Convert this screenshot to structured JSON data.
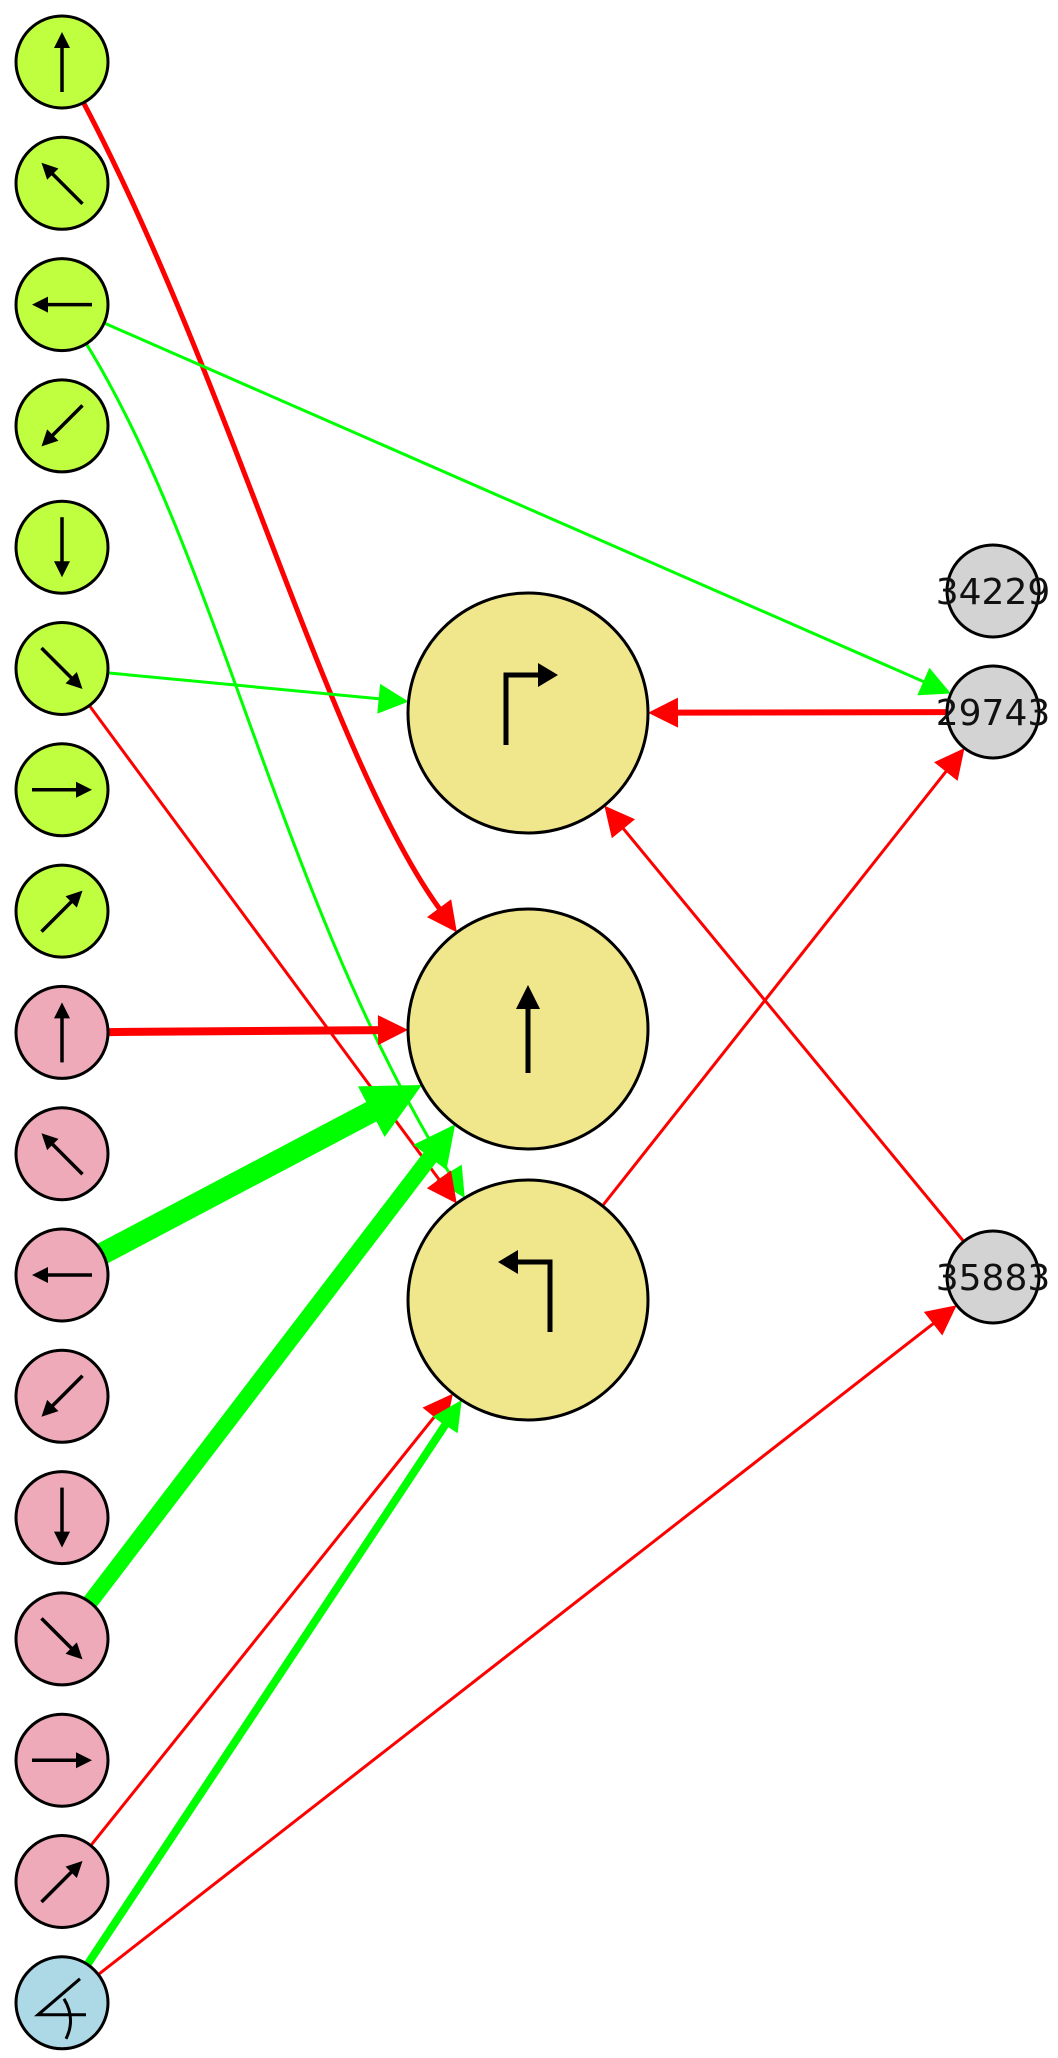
{
  "colors": {
    "input_green": "#bfff40",
    "input_pink": "#eeaab9",
    "input_blue": "#add8e6",
    "output_yellow": "#f0e68c",
    "hidden_gray": "#d3d3d3",
    "edge_positive": "#00ff00",
    "edge_negative": "#ff0000",
    "outline": "#000000"
  },
  "inputs": [
    {
      "id": "g-up",
      "group": "green",
      "icon": "arrow-up-icon"
    },
    {
      "id": "g-upleft",
      "group": "green",
      "icon": "arrow-up-left-icon"
    },
    {
      "id": "g-left",
      "group": "green",
      "icon": "arrow-left-icon"
    },
    {
      "id": "g-downleft",
      "group": "green",
      "icon": "arrow-down-left-icon"
    },
    {
      "id": "g-down",
      "group": "green",
      "icon": "arrow-down-icon"
    },
    {
      "id": "g-downright",
      "group": "green",
      "icon": "arrow-down-right-icon"
    },
    {
      "id": "g-right",
      "group": "green",
      "icon": "arrow-right-icon"
    },
    {
      "id": "g-upright",
      "group": "green",
      "icon": "arrow-up-right-icon"
    },
    {
      "id": "p-up",
      "group": "pink",
      "icon": "arrow-up-icon"
    },
    {
      "id": "p-upleft",
      "group": "pink",
      "icon": "arrow-up-left-icon"
    },
    {
      "id": "p-left",
      "group": "pink",
      "icon": "arrow-left-icon"
    },
    {
      "id": "p-downleft",
      "group": "pink",
      "icon": "arrow-down-left-icon"
    },
    {
      "id": "p-down",
      "group": "pink",
      "icon": "arrow-down-icon"
    },
    {
      "id": "p-downright",
      "group": "pink",
      "icon": "arrow-down-right-icon"
    },
    {
      "id": "p-right",
      "group": "pink",
      "icon": "arrow-right-icon"
    },
    {
      "id": "p-upright",
      "group": "pink",
      "icon": "arrow-up-right-icon"
    },
    {
      "id": "b-angle",
      "group": "blue",
      "icon": "angle-icon"
    }
  ],
  "outputs": [
    {
      "id": "o-turn-right",
      "icon": "turn-right-icon"
    },
    {
      "id": "o-forward",
      "icon": "forward-arrow-icon"
    },
    {
      "id": "o-turn-left",
      "icon": "turn-left-icon"
    }
  ],
  "hidden": [
    {
      "id": "h-34229",
      "label": "34229"
    },
    {
      "id": "h-29743",
      "label": "29743"
    },
    {
      "id": "h-35883",
      "label": "35883"
    }
  ],
  "edges": [
    {
      "from": "g-up",
      "to": "o-forward",
      "sign": "negative",
      "weight": 5
    },
    {
      "from": "g-left",
      "to": "h-29743",
      "sign": "positive",
      "weight": 3
    },
    {
      "from": "g-left",
      "to": "o-turn-left",
      "sign": "positive",
      "weight": 3
    },
    {
      "from": "g-downright",
      "to": "o-turn-right",
      "sign": "positive",
      "weight": 3
    },
    {
      "from": "g-downright",
      "to": "o-turn-left",
      "sign": "negative",
      "weight": 3
    },
    {
      "from": "p-up",
      "to": "o-forward",
      "sign": "negative",
      "weight": 8
    },
    {
      "from": "p-left",
      "to": "o-forward",
      "sign": "positive",
      "weight": 22
    },
    {
      "from": "p-downright",
      "to": "o-forward",
      "sign": "positive",
      "weight": 16
    },
    {
      "from": "p-upright",
      "to": "o-turn-left",
      "sign": "negative",
      "weight": 3
    },
    {
      "from": "b-angle",
      "to": "o-turn-left",
      "sign": "positive",
      "weight": 8
    },
    {
      "from": "b-angle",
      "to": "h-35883",
      "sign": "negative",
      "weight": 3
    },
    {
      "from": "h-29743",
      "to": "o-turn-right",
      "sign": "negative",
      "weight": 6
    },
    {
      "from": "h-35883",
      "to": "o-turn-right",
      "sign": "negative",
      "weight": 3
    },
    {
      "from": "o-turn-left",
      "to": "h-29743",
      "sign": "negative",
      "weight": 3
    }
  ]
}
